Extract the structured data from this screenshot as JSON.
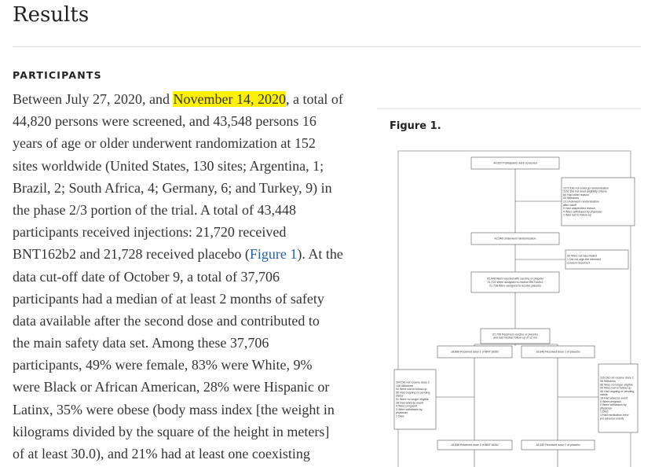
{
  "header": {
    "title": "Results"
  },
  "section": {
    "heading": "PARTICIPANTS",
    "lines": [
      {
        "before": "Between July 27, 2020, and ",
        "highlight": "November 14, 2020",
        "after": ", a total of"
      },
      "44,820 persons were screened, and 43,548 persons 16",
      "years of age or older underwent randomization at 152",
      "sites worldwide (United States, 130 sites; Argentina, 1;",
      "Brazil, 2; South Africa, 4; Germany, 6; and Turkey, 9) in",
      "the phase 2/3 portion of the trial. A total of 43,448",
      "participants received injections: 21,720 received",
      {
        "before": "BNT162b2 and 21,728 received placebo (",
        "link": "Figure 1",
        "after": "). At the"
      },
      "data cut-off date of October 9, a total of 37,706",
      "participants had a median of at least 2 months of safety",
      "data available after the second dose and contributed to",
      "the main safety data set. Among these 37,706",
      "participants, 49% were female, 83% were White, 9%",
      "were Black or African American, 28% were Hispanic or",
      "Latinx, 35% were obese (body mass index [the weight in",
      "kilograms divided by the square of the height in meters]",
      "of at least 30.0), and 21% had at least one coexisting"
    ]
  },
  "figure": {
    "label": "Figure 1.",
    "flowchart": {
      "boxes": [
        {
          "lines": [
            "44,820 Participants were screened"
          ]
        },
        {
          "lines": [
            "1272 Did not undergo randomization",
            "1152 Did not meet eligibility criteria",
            "84 Had other reason",
            "33 Withdrew",
            "13 Underwent randomization",
            "after cutoff",
            "5 Had unspecified reason",
            "4 Were withdrawn by physician",
            "1 Was lost to follow-up"
          ]
        },
        {
          "lines": [
            "43,548 Underwent randomization"
          ]
        },
        {
          "lines": [
            "99 Were not vaccinated",
            "1 Did not sign the informed",
            "consent document"
          ]
        },
        {
          "lines": [
            "43,448 Were injected with vaccine or placebo",
            "21,720 Were assigned to receive BNT162b2",
            "21,728 Were assigned to receive placebo"
          ]
        },
        {
          "lines": [
            "37,706 Received vaccine or placebo",
            "and had median follow-up of ≥2 mo"
          ]
        },
        {
          "lines": [
            "18,860 Received dose 1 of BNT162b2"
          ]
        },
        {
          "lines": [
            "18,846 Received dose 1 of placebo"
          ]
        },
        {
          "lines": [
            "304 Did not receive dose 2",
            "100 Withdrew",
            "92 Were lost to follow-up",
            "56 Had ongoing or pending",
            "status",
            "51 Were no longer eligible",
            "28 Had adverse event",
            "4 Were pregnant",
            "3 Were withdrawn by",
            "physician",
            "1 Died"
          ]
        },
        {
          "lines": [
            "316 Did not receive dose 2",
            "96 Withdrew",
            "86 Were no longer eligible",
            "65 Were lost to follow-up",
            "46 Had ongoing or pending",
            "status",
            "18 Had adverse event",
            "5 Were pregnant",
            "2 Were withdrawn by",
            "physician",
            "1 Died",
            "1 Had medication error",
            "(no adverse event)"
          ]
        },
        {
          "lines": [
            "18,556 Received dose 2 of BNT162b2"
          ]
        },
        {
          "lines": [
            "18,530 Received dose 2 of placebo"
          ]
        }
      ]
    }
  }
}
